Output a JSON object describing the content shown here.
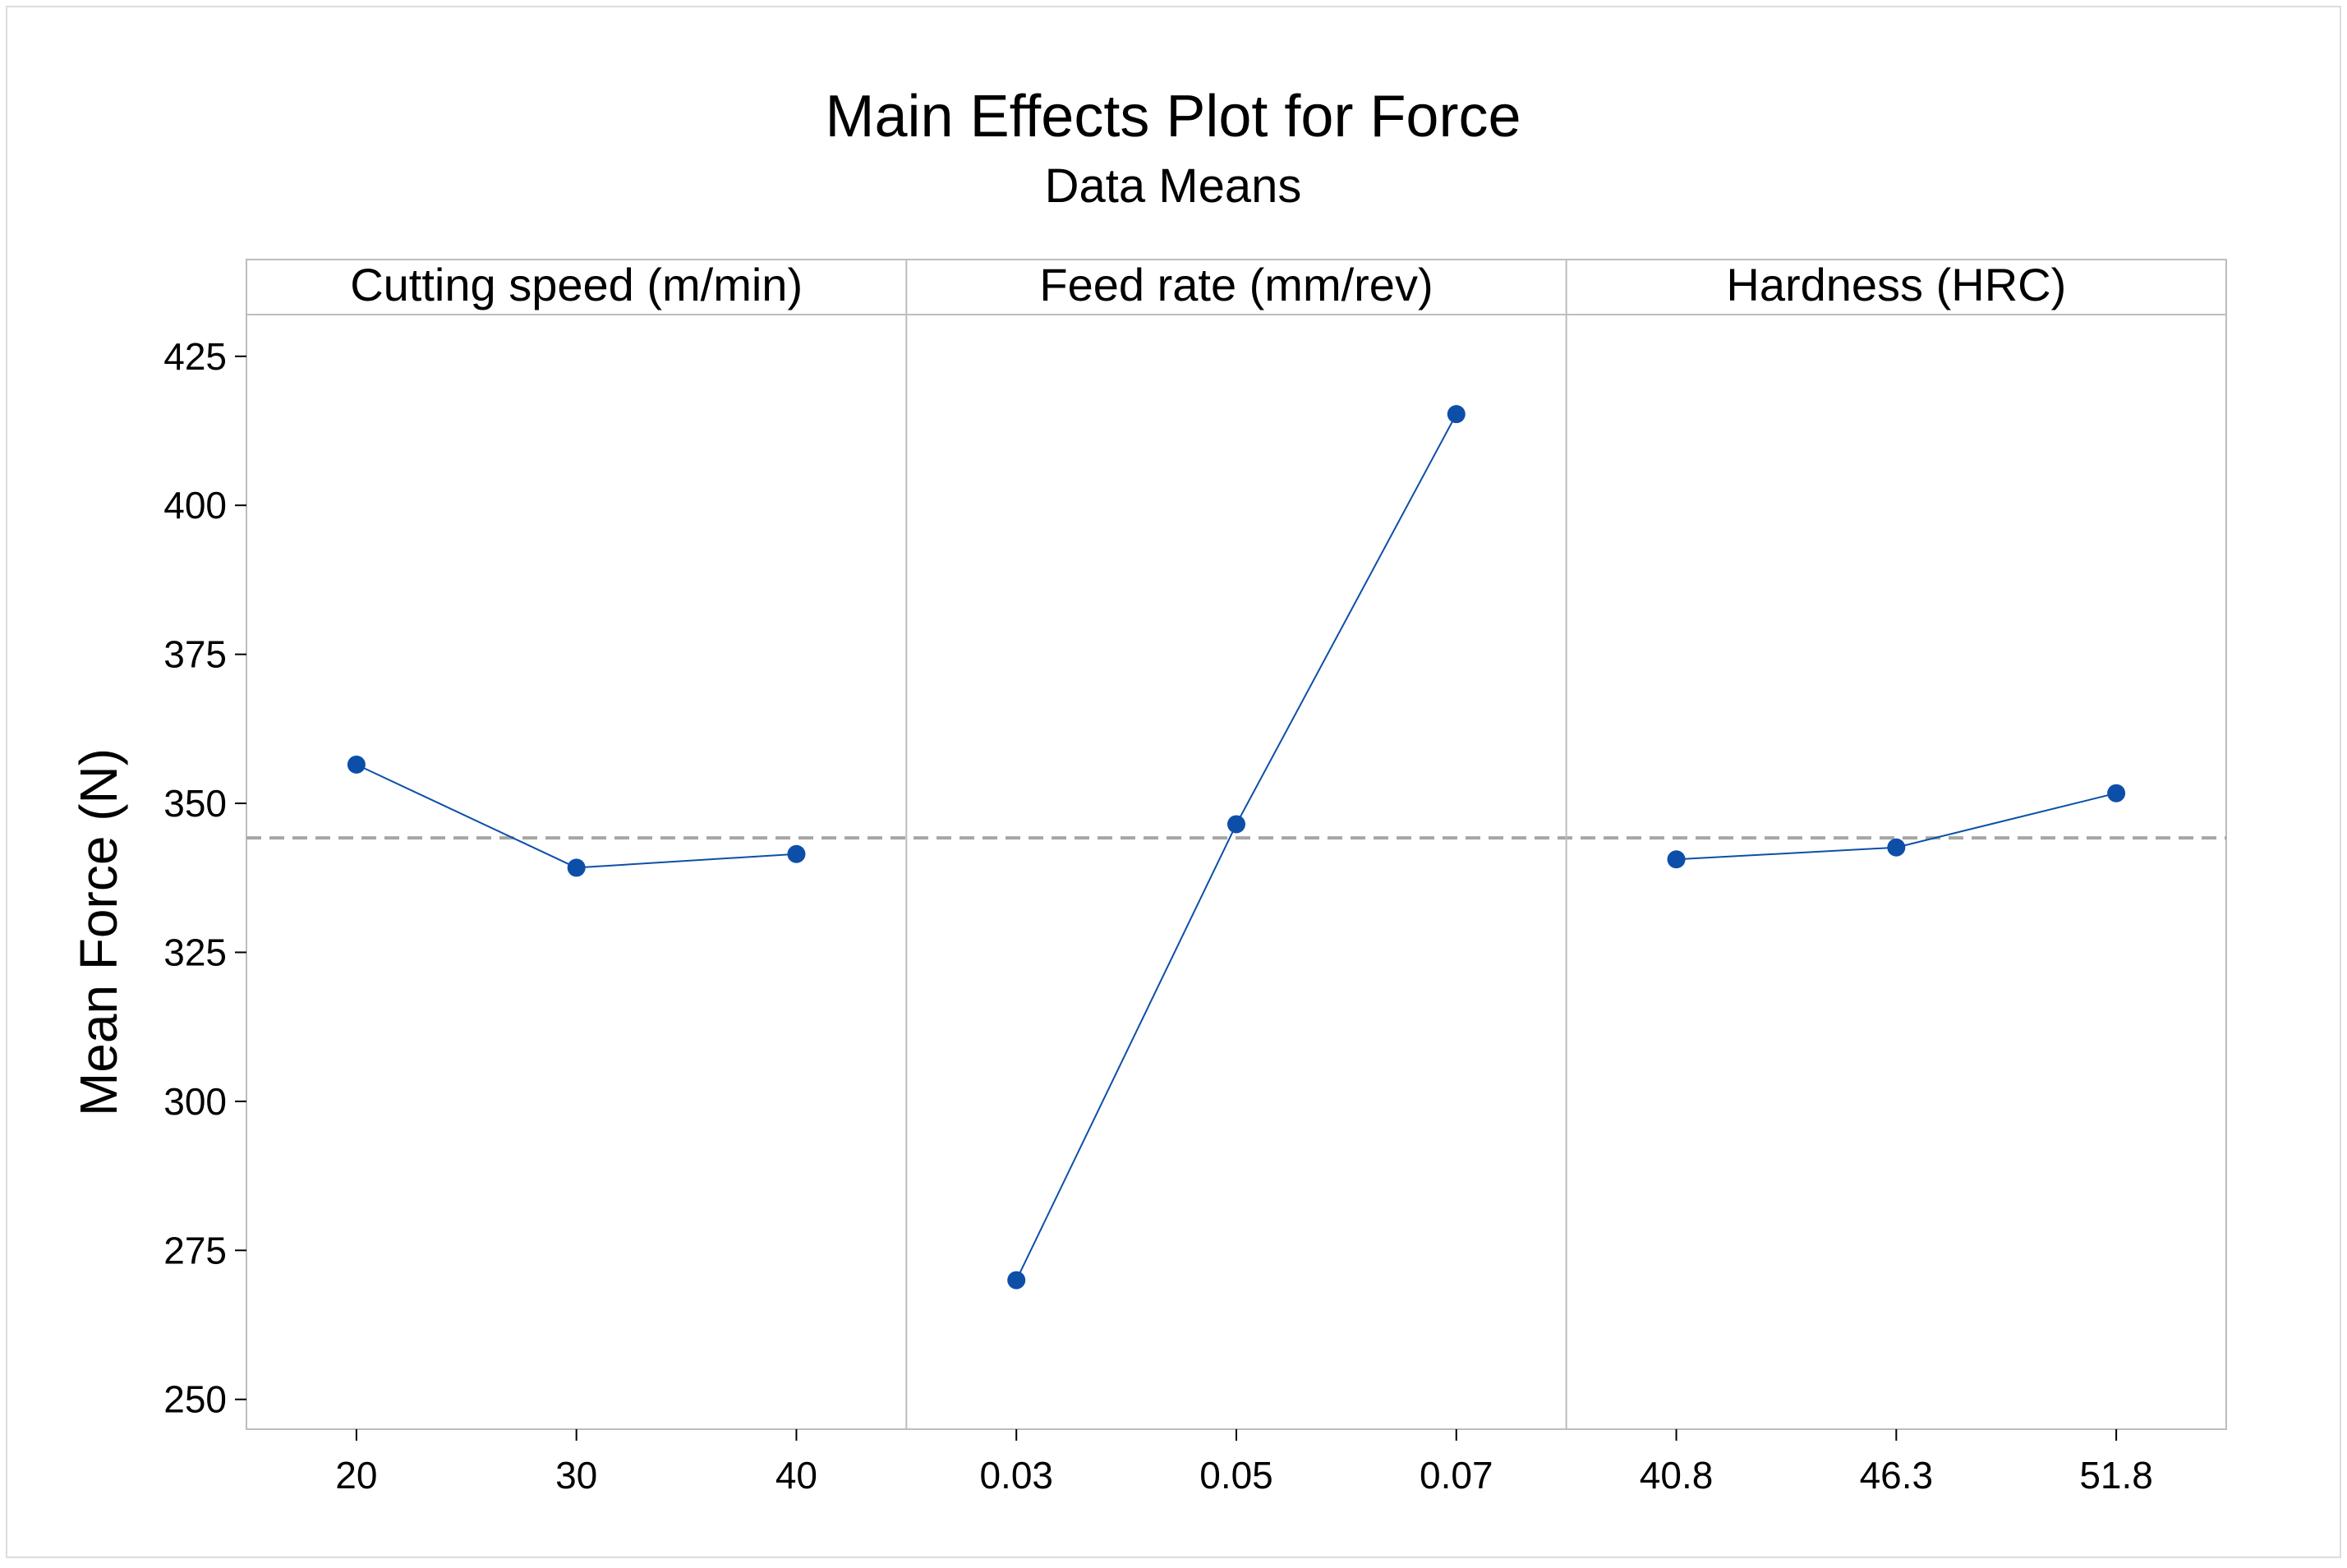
{
  "chart_data": {
    "type": "line",
    "title": "Main Effects Plot for Force",
    "subtitle": "Data Means",
    "ylabel": "Mean Force (N)",
    "ylim": [
      245,
      432
    ],
    "yticks": [
      250,
      275,
      300,
      325,
      350,
      375,
      400,
      425
    ],
    "overall_mean": 344.2,
    "grid": false,
    "colors": {
      "series": "#0d4fa8",
      "marker": "#0d4fa8",
      "mean_line": "#a6a6a6",
      "frame": "#bdbdbd"
    },
    "panels": [
      {
        "factor": "Cutting speed (m/min)",
        "levels": [
          "20",
          "30",
          "40"
        ],
        "values": [
          356.5,
          339.2,
          341.5
        ]
      },
      {
        "factor": "Feed rate (mm/rev)",
        "levels": [
          "0.03",
          "0.05",
          "0.07"
        ],
        "values": [
          270.0,
          346.5,
          415.3
        ]
      },
      {
        "factor": "Hardness (HRC)",
        "levels": [
          "40.8",
          "46.3",
          "51.8"
        ],
        "values": [
          340.6,
          342.6,
          351.7
        ]
      }
    ]
  }
}
